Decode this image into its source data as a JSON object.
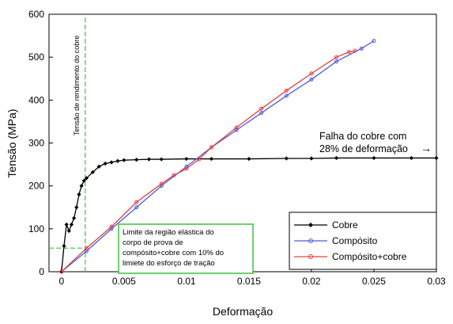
{
  "chart_data": {
    "type": "line",
    "xlabel": "Deformação",
    "ylabel": "Tensão (MPa)",
    "xlim": [
      -0.001,
      0.03
    ],
    "ylim": [
      0,
      600
    ],
    "x_ticks": [
      "0",
      "0.005",
      "0.01",
      "0.015",
      "0.02",
      "0.025",
      "0.03"
    ],
    "x_tick_values": [
      0,
      0.005,
      0.01,
      0.015,
      0.02,
      0.025,
      0.03
    ],
    "y_ticks": [
      "0",
      "100",
      "200",
      "300",
      "400",
      "500",
      "600"
    ],
    "y_tick_values": [
      0,
      100,
      200,
      300,
      400,
      500,
      600
    ],
    "legend_position": "bottom-right",
    "series": [
      {
        "name": "Cobre",
        "color": "#000000",
        "marker": "diamond",
        "x": [
          0,
          0.0002,
          0.0004,
          0.0006,
          0.0008,
          0.001,
          0.0012,
          0.0014,
          0.0016,
          0.0018,
          0.002,
          0.0025,
          0.003,
          0.0035,
          0.004,
          0.0045,
          0.005,
          0.006,
          0.007,
          0.008,
          0.01,
          0.012,
          0.015,
          0.018,
          0.02,
          0.022,
          0.025,
          0.028,
          0.03
        ],
        "y": [
          0,
          60,
          110,
          95,
          110,
          125,
          150,
          180,
          200,
          212,
          218,
          232,
          245,
          252,
          255,
          258,
          260,
          261,
          262,
          262,
          263,
          263,
          263,
          264,
          264,
          265,
          265,
          265,
          265
        ]
      },
      {
        "name": "Compósito",
        "color": "#4a5ce0",
        "marker": "circle",
        "x": [
          0,
          0.002,
          0.004,
          0.006,
          0.008,
          0.01,
          0.012,
          0.014,
          0.016,
          0.018,
          0.02,
          0.022,
          0.024,
          0.025
        ],
        "y": [
          0,
          48,
          100,
          150,
          200,
          245,
          290,
          330,
          370,
          410,
          448,
          490,
          520,
          538
        ]
      },
      {
        "name": "Compósito+cobre",
        "color": "#e04040",
        "marker": "circle",
        "x": [
          0,
          0.002,
          0.004,
          0.006,
          0.008,
          0.009,
          0.01,
          0.011,
          0.012,
          0.014,
          0.016,
          0.018,
          0.02,
          0.022,
          0.023,
          0.0235
        ],
        "y": [
          0,
          55,
          105,
          162,
          205,
          225,
          240,
          262,
          290,
          336,
          380,
          422,
          462,
          500,
          512,
          515
        ]
      }
    ],
    "vline": {
      "x": 0.0019,
      "color": "#3cc43c",
      "label": "Tensão de rendimento do cobre"
    },
    "hline_seg": {
      "y": 55,
      "x_end": 0.0019,
      "color": "#3cc43c"
    },
    "annotations": {
      "failure": {
        "line1": "Falha do cobre com",
        "line2": "28% de deformação",
        "arrow": "→"
      },
      "elastic_box": {
        "lines": [
          "Limite da região elástica do",
          "corpo de prova de",
          "compósito+cobre com 10% do",
          "limiete do esforço de tração"
        ],
        "border_color": "#3cc43c"
      }
    }
  }
}
